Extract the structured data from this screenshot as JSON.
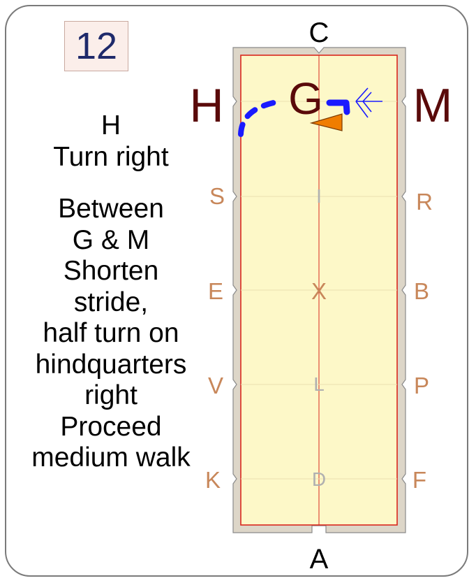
{
  "movement": {
    "number": "12"
  },
  "instructions": {
    "marker": "H",
    "line1": "Turn right",
    "paragraph": [
      "Between",
      "G & M",
      "Shorten",
      "stride,",
      "half turn on",
      "hindquarters",
      "right",
      "Proceed",
      "medium walk"
    ]
  },
  "arena": {
    "letters": {
      "C": "C",
      "A": "A",
      "H": "H",
      "M": "M",
      "G": "G",
      "S": "S",
      "R": "R",
      "E": "E",
      "B": "B",
      "V": "V",
      "P": "P",
      "K": "K",
      "F": "F",
      "I": "I",
      "X": "X",
      "L": "L",
      "D": "D"
    },
    "colors": {
      "surface": "#fdf8c8",
      "border": "#d9261c",
      "frame": "#ddd6c8",
      "path": "#1a1aff",
      "rider": "#f07d00",
      "major_letters": "#5a0a0a",
      "side_letters": "#c8875a",
      "centerline_letters": "#b0b0b0"
    }
  }
}
